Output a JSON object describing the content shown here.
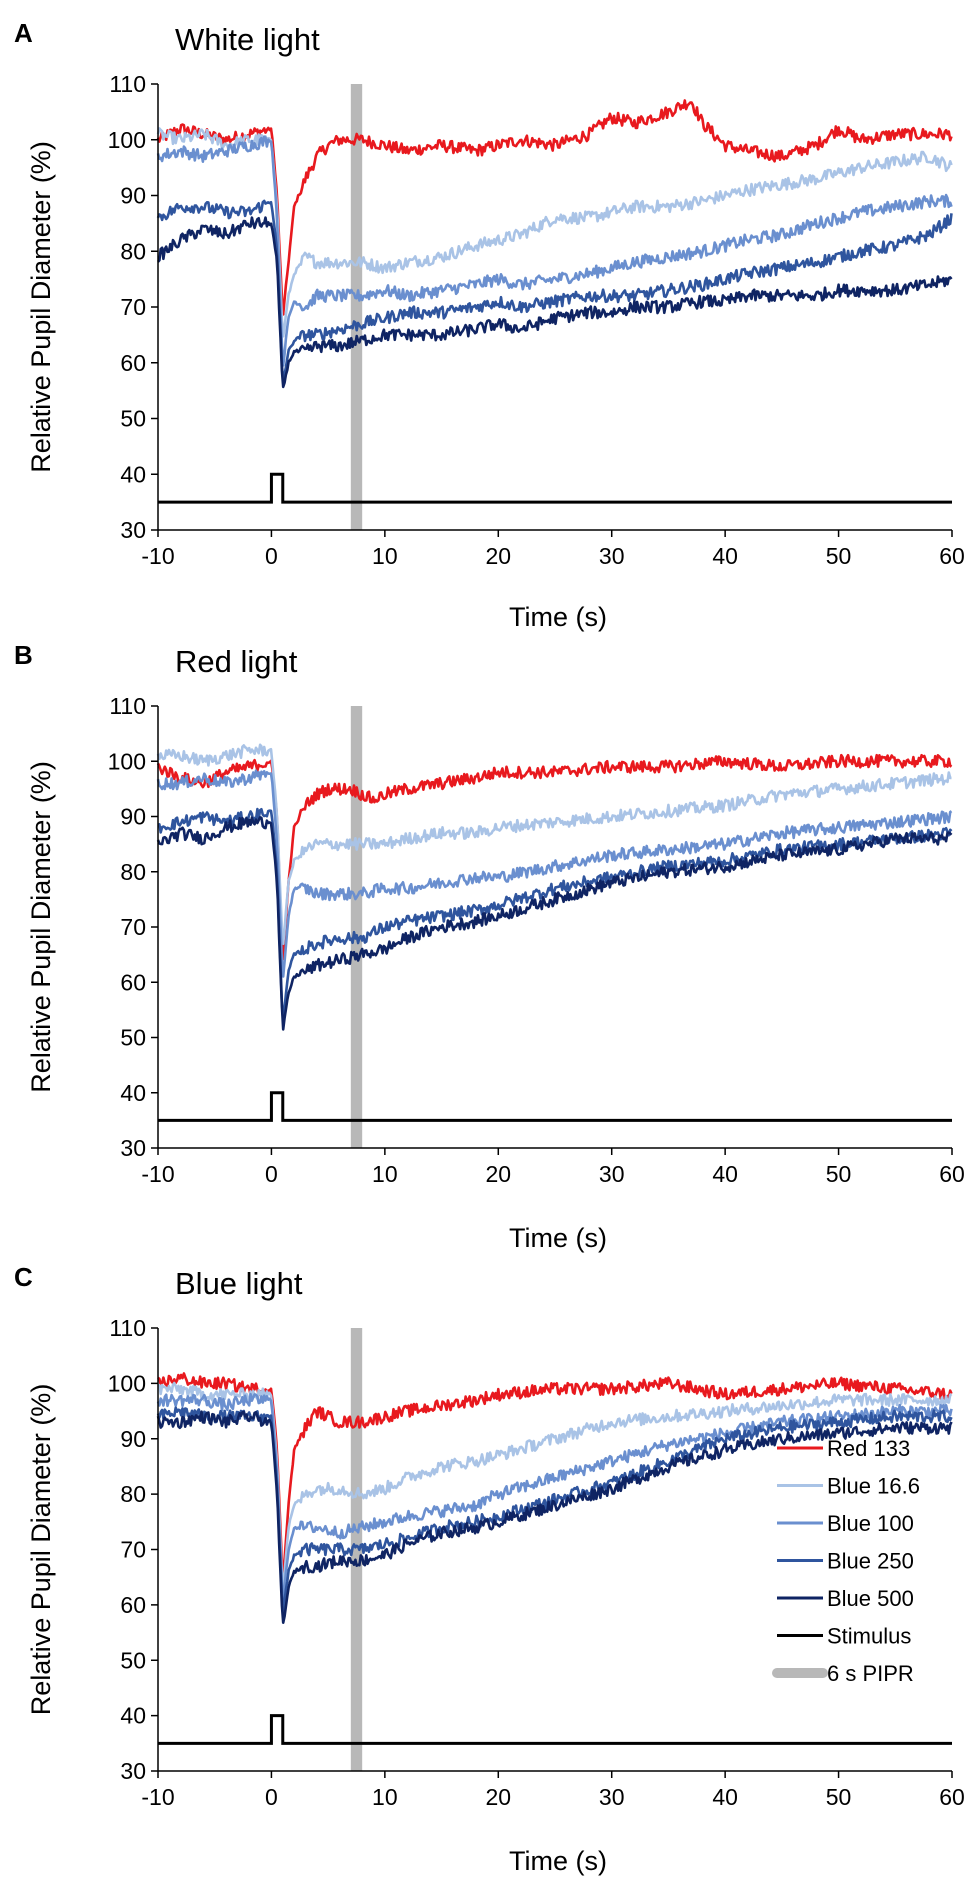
{
  "chart_data": [
    {
      "panel": "A",
      "type": "line",
      "title": "White light",
      "xlabel": "Time (s)",
      "ylabel": "Relative Pupil Diameter (%)",
      "xlim": [
        -10,
        60
      ],
      "ylim": [
        30,
        110
      ],
      "xticks": [
        -10,
        0,
        10,
        20,
        30,
        40,
        50,
        60
      ],
      "yticks": [
        30,
        40,
        50,
        60,
        70,
        80,
        90,
        100,
        110
      ],
      "pipr_window": [
        7,
        8
      ],
      "stimulus": {
        "baseline": 35,
        "peak": 40,
        "on": 0,
        "off": 1
      },
      "series": [
        {
          "name": "Red 133",
          "color": "#e8191e",
          "x": [
            -10,
            -8,
            -6,
            -4,
            -2,
            0,
            0.5,
            1,
            1.5,
            2,
            3,
            4,
            5,
            6,
            7,
            8,
            10,
            12,
            15,
            18,
            20,
            22,
            25,
            28,
            30,
            32,
            35,
            37,
            38,
            40,
            42,
            45,
            48,
            50,
            52,
            55,
            58,
            60
          ],
          "y": [
            100,
            102,
            101,
            100,
            101,
            102,
            90,
            68,
            78,
            88,
            93,
            97,
            99,
            100,
            100,
            100,
            99,
            98,
            99,
            98,
            99,
            100,
            99,
            101,
            104,
            103,
            105,
            107,
            103,
            99,
            98,
            97,
            99,
            102,
            100,
            101,
            101,
            101
          ]
        },
        {
          "name": "Blue 16.6",
          "color": "#a9c3e6",
          "x": [
            -10,
            -8,
            -6,
            -4,
            -2,
            0,
            0.5,
            1,
            1.5,
            2,
            3,
            4,
            6,
            8,
            10,
            12,
            15,
            18,
            20,
            22,
            25,
            28,
            30,
            32,
            35,
            38,
            40,
            42,
            45,
            48,
            50,
            52,
            55,
            58,
            60
          ],
          "y": [
            101,
            100,
            101,
            99,
            100,
            100,
            88,
            64,
            72,
            76,
            79,
            78,
            78,
            78,
            77,
            78,
            79,
            81,
            82,
            83,
            86,
            86,
            87,
            88,
            88,
            89,
            90,
            91,
            92,
            93,
            94,
            95,
            96,
            97,
            95
          ]
        },
        {
          "name": "Blue 100",
          "color": "#6a8fcf",
          "x": [
            -10,
            -8,
            -6,
            -4,
            -2,
            0,
            0.5,
            1,
            1.5,
            2,
            3,
            4,
            6,
            8,
            10,
            12,
            15,
            18,
            20,
            22,
            25,
            28,
            30,
            32,
            35,
            38,
            40,
            42,
            45,
            48,
            50,
            52,
            55,
            58,
            60
          ],
          "y": [
            97,
            98,
            97,
            98,
            99,
            100,
            86,
            59,
            68,
            71,
            70,
            72,
            72,
            72,
            73,
            72,
            73,
            74,
            75,
            74,
            75,
            76,
            77,
            78,
            79,
            80,
            81,
            82,
            83,
            85,
            86,
            87,
            88,
            89,
            89
          ]
        },
        {
          "name": "Blue 250",
          "color": "#2f559e",
          "x": [
            -10,
            -8,
            -6,
            -4,
            -2,
            0,
            0.5,
            1,
            1.5,
            2,
            3,
            4,
            6,
            8,
            10,
            12,
            15,
            18,
            20,
            22,
            25,
            28,
            30,
            32,
            35,
            38,
            40,
            42,
            45,
            48,
            50,
            52,
            55,
            58,
            60
          ],
          "y": [
            86,
            88,
            88,
            87,
            87,
            89,
            80,
            56,
            62,
            64,
            65,
            65,
            66,
            67,
            68,
            69,
            69,
            70,
            71,
            70,
            71,
            72,
            72,
            72,
            73,
            74,
            75,
            76,
            77,
            78,
            79,
            80,
            81,
            83,
            86
          ]
        },
        {
          "name": "Blue 500",
          "color": "#0f2463",
          "x": [
            -10,
            -8,
            -6,
            -4,
            -2,
            0,
            0.5,
            1,
            1.5,
            2,
            3,
            4,
            6,
            8,
            10,
            12,
            15,
            18,
            20,
            22,
            25,
            28,
            30,
            32,
            35,
            38,
            40,
            42,
            45,
            48,
            50,
            52,
            55,
            58,
            60
          ],
          "y": [
            79,
            82,
            84,
            83,
            85,
            85,
            78,
            55,
            60,
            62,
            62,
            63,
            63,
            64,
            65,
            65,
            65,
            66,
            67,
            66,
            68,
            69,
            69,
            70,
            70,
            71,
            71,
            72,
            72,
            72,
            73,
            73,
            73,
            74,
            75
          ]
        }
      ]
    },
    {
      "panel": "B",
      "type": "line",
      "title": "Red light",
      "xlabel": "Time (s)",
      "ylabel": "Relative Pupil Diameter (%)",
      "xlim": [
        -10,
        60
      ],
      "ylim": [
        30,
        110
      ],
      "xticks": [
        -10,
        0,
        10,
        20,
        30,
        40,
        50,
        60
      ],
      "yticks": [
        30,
        40,
        50,
        60,
        70,
        80,
        90,
        100,
        110
      ],
      "pipr_window": [
        7,
        8
      ],
      "stimulus": {
        "baseline": 35,
        "peak": 40,
        "on": 0,
        "off": 1
      },
      "series": [
        {
          "name": "Red 133",
          "color": "#e8191e",
          "x": [
            -10,
            -8,
            -6,
            -4,
            -2,
            0,
            0.5,
            1,
            1.5,
            2,
            3,
            4,
            5,
            6,
            7,
            8,
            9,
            10,
            12,
            15,
            18,
            20,
            25,
            30,
            35,
            40,
            45,
            50,
            55,
            60
          ],
          "y": [
            99,
            97,
            96,
            98,
            99,
            100,
            90,
            63,
            78,
            88,
            92,
            94,
            95,
            95,
            95,
            94,
            93,
            94,
            95,
            96,
            97,
            98,
            98,
            99,
            99,
            100,
            99,
            100,
            100,
            100
          ]
        },
        {
          "name": "Blue 16.6",
          "color": "#a9c3e6",
          "x": [
            -10,
            -8,
            -6,
            -4,
            -2,
            0,
            0.5,
            1,
            1.5,
            2,
            3,
            4,
            6,
            8,
            10,
            12,
            15,
            18,
            20,
            25,
            30,
            35,
            40,
            45,
            50,
            55,
            60
          ],
          "y": [
            101,
            101,
            100,
            101,
            102,
            102,
            90,
            66,
            78,
            82,
            84,
            85,
            85,
            85,
            85,
            86,
            87,
            87,
            88,
            89,
            90,
            91,
            92,
            94,
            95,
            96,
            97
          ]
        },
        {
          "name": "Blue 100",
          "color": "#6a8fcf",
          "x": [
            -10,
            -8,
            -6,
            -4,
            -2,
            0,
            0.5,
            1,
            1.5,
            2,
            3,
            4,
            6,
            8,
            10,
            12,
            15,
            18,
            20,
            25,
            30,
            35,
            40,
            45,
            50,
            55,
            60
          ],
          "y": [
            96,
            96,
            97,
            96,
            97,
            98,
            85,
            60,
            72,
            77,
            77,
            76,
            76,
            76,
            77,
            77,
            78,
            79,
            79,
            81,
            83,
            84,
            85,
            87,
            88,
            89,
            90
          ]
        },
        {
          "name": "Blue 250",
          "color": "#2f559e",
          "x": [
            -10,
            -8,
            -6,
            -4,
            -2,
            0,
            0.5,
            1,
            1.5,
            2,
            3,
            4,
            6,
            8,
            10,
            12,
            15,
            18,
            20,
            25,
            30,
            35,
            40,
            45,
            50,
            55,
            60
          ],
          "y": [
            88,
            89,
            90,
            89,
            90,
            91,
            80,
            52,
            62,
            65,
            66,
            67,
            68,
            68,
            70,
            71,
            72,
            73,
            74,
            77,
            79,
            81,
            82,
            84,
            85,
            86,
            87
          ]
        },
        {
          "name": "Blue 500",
          "color": "#0f2463",
          "x": [
            -10,
            -8,
            -6,
            -4,
            -2,
            0,
            0.5,
            1,
            1.5,
            2,
            3,
            4,
            6,
            8,
            10,
            12,
            15,
            18,
            20,
            25,
            30,
            35,
            40,
            45,
            50,
            55,
            60
          ],
          "y": [
            85,
            87,
            86,
            88,
            89,
            89,
            78,
            51,
            58,
            61,
            62,
            63,
            64,
            65,
            66,
            68,
            70,
            71,
            72,
            75,
            78,
            80,
            81,
            83,
            84,
            86,
            86
          ]
        }
      ]
    },
    {
      "panel": "C",
      "type": "line",
      "title": "Blue light",
      "xlabel": "Time (s)",
      "ylabel": "Relative Pupil Diameter (%)",
      "xlim": [
        -10,
        60
      ],
      "ylim": [
        30,
        110
      ],
      "xticks": [
        -10,
        0,
        10,
        20,
        30,
        40,
        50,
        60
      ],
      "yticks": [
        30,
        40,
        50,
        60,
        70,
        80,
        90,
        100,
        110
      ],
      "pipr_window": [
        7,
        8
      ],
      "stimulus": {
        "baseline": 35,
        "peak": 40,
        "on": 0,
        "off": 1
      },
      "legend": {
        "position": "right",
        "entries": [
          {
            "name": "Red 133",
            "color": "#e8191e",
            "kind": "line"
          },
          {
            "name": "Blue 16.6",
            "color": "#a9c3e6",
            "kind": "line"
          },
          {
            "name": "Blue 100",
            "color": "#6a8fcf",
            "kind": "line"
          },
          {
            "name": "Blue 250",
            "color": "#2f559e",
            "kind": "line"
          },
          {
            "name": "Blue 500",
            "color": "#0f2463",
            "kind": "line"
          },
          {
            "name": "Stimulus",
            "color": "#000000",
            "kind": "line"
          },
          {
            "name": "6 s PIPR",
            "color": "#b8b8b8",
            "kind": "bar"
          }
        ]
      },
      "series": [
        {
          "name": "Red 133",
          "color": "#e8191e",
          "x": [
            -10,
            -8,
            -6,
            -4,
            -2,
            0,
            0.5,
            1,
            1.5,
            2,
            3,
            4,
            5,
            6,
            7,
            8,
            10,
            12,
            15,
            18,
            20,
            25,
            30,
            35,
            40,
            45,
            50,
            55,
            60
          ],
          "y": [
            100,
            101,
            100,
            100,
            99,
            99,
            88,
            64,
            78,
            88,
            92,
            95,
            94,
            93,
            93,
            93,
            94,
            95,
            96,
            97,
            98,
            99,
            99,
            100,
            98,
            99,
            100,
            99,
            98
          ]
        },
        {
          "name": "Blue 16.6",
          "color": "#a9c3e6",
          "x": [
            -10,
            -8,
            -6,
            -4,
            -2,
            0,
            0.5,
            1,
            1.5,
            2,
            3,
            4,
            6,
            8,
            10,
            12,
            15,
            18,
            20,
            25,
            30,
            35,
            40,
            45,
            50,
            55,
            60
          ],
          "y": [
            99,
            99,
            98,
            98,
            98,
            98,
            86,
            62,
            74,
            78,
            80,
            81,
            81,
            80,
            81,
            83,
            85,
            86,
            87,
            90,
            93,
            94,
            95,
            96,
            97,
            97,
            97
          ]
        },
        {
          "name": "Blue 100",
          "color": "#6a8fcf",
          "x": [
            -10,
            -8,
            -6,
            -4,
            -2,
            0,
            0.5,
            1,
            1.5,
            2,
            3,
            4,
            6,
            8,
            10,
            12,
            15,
            18,
            20,
            25,
            30,
            35,
            40,
            45,
            50,
            55,
            60
          ],
          "y": [
            97,
            97,
            97,
            96,
            97,
            97,
            84,
            60,
            70,
            74,
            74,
            74,
            73,
            74,
            75,
            76,
            77,
            78,
            80,
            83,
            86,
            89,
            91,
            93,
            94,
            95,
            95
          ]
        },
        {
          "name": "Blue 250",
          "color": "#2f559e",
          "x": [
            -10,
            -8,
            -6,
            -4,
            -2,
            0,
            0.5,
            1,
            1.5,
            2,
            3,
            4,
            6,
            8,
            10,
            12,
            15,
            18,
            20,
            25,
            30,
            35,
            40,
            45,
            50,
            55,
            60
          ],
          "y": [
            94,
            95,
            94,
            94,
            94,
            94,
            82,
            58,
            66,
            69,
            70,
            70,
            70,
            70,
            71,
            72,
            74,
            75,
            76,
            79,
            82,
            86,
            90,
            92,
            93,
            94,
            94
          ]
        },
        {
          "name": "Blue 500",
          "color": "#0f2463",
          "x": [
            -10,
            -8,
            -6,
            -4,
            -2,
            0,
            0.5,
            1,
            1.5,
            2,
            3,
            4,
            6,
            8,
            10,
            12,
            15,
            18,
            20,
            25,
            30,
            35,
            40,
            45,
            50,
            55,
            60
          ],
          "y": [
            93,
            93,
            94,
            93,
            94,
            93,
            80,
            56,
            63,
            66,
            67,
            67,
            68,
            68,
            69,
            71,
            73,
            74,
            75,
            78,
            81,
            85,
            88,
            90,
            91,
            92,
            92
          ]
        }
      ]
    }
  ]
}
